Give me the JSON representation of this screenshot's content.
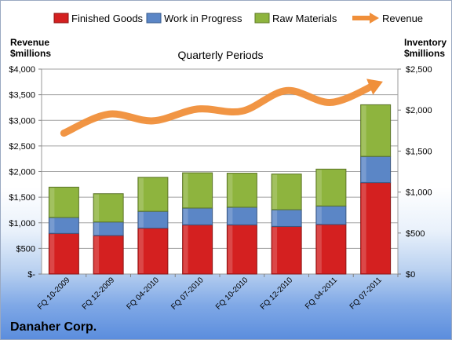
{
  "chart_data": {
    "type": "bar",
    "stacked": true,
    "title": "Quarterly Periods",
    "footer_label": "Danaher Corp.",
    "categories": [
      "FQ 10-2009",
      "FQ 12-2009",
      "FQ 04-2010",
      "FQ 07-2010",
      "FQ 10-2010",
      "FQ 12-2010",
      "FQ 04-2011",
      "FQ 07-2011"
    ],
    "left_axis": {
      "label_line1": "Revenue",
      "label_line2": "$millions",
      "ticks": [
        "$-",
        "$500",
        "$1,000",
        "$1,500",
        "$2,000",
        "$2,500",
        "$3,000",
        "$3,500",
        "$4,000"
      ],
      "ylim": [
        0,
        4000
      ]
    },
    "right_axis": {
      "label_line1": "Inventory",
      "label_line2": "$millions",
      "ticks": [
        "$0",
        "$500",
        "$1,000",
        "$1,500",
        "$2,000",
        "$2,500"
      ],
      "ylim": [
        0,
        2500
      ]
    },
    "series": [
      {
        "name": "Finished Goods",
        "axis": "right",
        "color": "#d42020",
        "values": [
          495,
          470,
          560,
          600,
          600,
          580,
          605,
          1115
        ]
      },
      {
        "name": "Work in Progress",
        "axis": "right",
        "color": "#5b86c6",
        "values": [
          195,
          165,
          205,
          205,
          215,
          205,
          225,
          320
        ]
      },
      {
        "name": "Raw Materials",
        "axis": "right",
        "color": "#8eb43e",
        "values": [
          370,
          345,
          415,
          430,
          415,
          435,
          450,
          630
        ]
      },
      {
        "name": "Revenue",
        "axis": "left",
        "type": "line",
        "color": "#f08f3a",
        "values": [
          2750,
          3120,
          2990,
          3220,
          3180,
          3580,
          3350,
          3700
        ]
      }
    ],
    "legend_position": "top",
    "grid": true
  }
}
